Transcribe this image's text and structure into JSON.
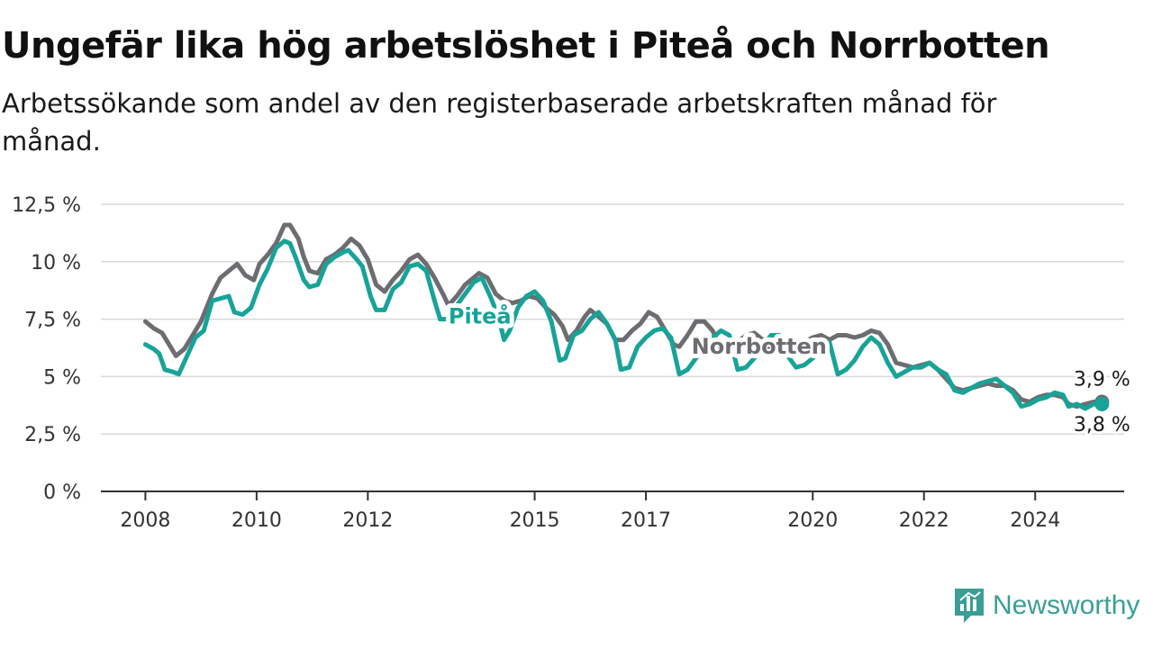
{
  "header": {
    "title": "Ungefär lika hög arbetslöshet i Piteå och Norrbotten",
    "subtitle": "Arbetssökande som andel av den registerbaserade arbetskraften månad för månad."
  },
  "brand": {
    "name": "Newsworthy",
    "icon": "newsworthy-logo-icon",
    "color": "#3a9e95"
  },
  "chart_data": {
    "type": "line",
    "title": "Ungefär lika hög arbetslöshet i Piteå och Norrbotten",
    "subtitle": "Arbetssökande som andel av den registerbaserade arbetskraften månad för månad.",
    "xlabel": "",
    "ylabel": "",
    "x_ticks": [
      {
        "label": "2008",
        "x": 2008.0
      },
      {
        "label": "2010",
        "x": 2010.0
      },
      {
        "label": "2012",
        "x": 2012.0
      },
      {
        "label": "2015",
        "x": 2015.0
      },
      {
        "label": "2017",
        "x": 2017.0
      },
      {
        "label": "2020",
        "x": 2020.0
      },
      {
        "label": "2022",
        "x": 2022.0
      },
      {
        "label": "2024",
        "x": 2024.0
      }
    ],
    "y_ticks": [
      {
        "label": "0 %",
        "y": 0
      },
      {
        "label": "2,5 %",
        "y": 2.5
      },
      {
        "label": "5 %",
        "y": 5
      },
      {
        "label": "7,5 %",
        "y": 7.5
      },
      {
        "label": "10 %",
        "y": 10
      },
      {
        "label": "12,5 %",
        "y": 12.5
      }
    ],
    "xlim": [
      2007.2,
      2025.6
    ],
    "ylim": [
      0,
      12.5
    ],
    "grid": true,
    "series": [
      {
        "name": "Norrbotten",
        "color": "#6d6c70",
        "end_label": "3,9 %",
        "points": [
          [
            2008.0,
            7.4
          ],
          [
            2008.15,
            7.1
          ],
          [
            2008.3,
            6.9
          ],
          [
            2008.45,
            6.3
          ],
          [
            2008.55,
            5.9
          ],
          [
            2008.7,
            6.2
          ],
          [
            2008.85,
            6.8
          ],
          [
            2009.0,
            7.4
          ],
          [
            2009.2,
            8.6
          ],
          [
            2009.35,
            9.3
          ],
          [
            2009.5,
            9.6
          ],
          [
            2009.65,
            9.9
          ],
          [
            2009.8,
            9.4
          ],
          [
            2009.95,
            9.2
          ],
          [
            2010.05,
            9.9
          ],
          [
            2010.2,
            10.3
          ],
          [
            2010.35,
            10.8
          ],
          [
            2010.5,
            11.6
          ],
          [
            2010.6,
            11.6
          ],
          [
            2010.75,
            11.0
          ],
          [
            2010.85,
            10.2
          ],
          [
            2010.95,
            9.6
          ],
          [
            2011.1,
            9.5
          ],
          [
            2011.25,
            10.1
          ],
          [
            2011.4,
            10.3
          ],
          [
            2011.55,
            10.6
          ],
          [
            2011.7,
            11.0
          ],
          [
            2011.85,
            10.7
          ],
          [
            2012.0,
            10.1
          ],
          [
            2012.15,
            9.0
          ],
          [
            2012.3,
            8.7
          ],
          [
            2012.45,
            9.2
          ],
          [
            2012.6,
            9.6
          ],
          [
            2012.75,
            10.1
          ],
          [
            2012.9,
            10.3
          ],
          [
            2013.05,
            9.9
          ],
          [
            2013.2,
            9.3
          ],
          [
            2013.35,
            8.6
          ],
          [
            2013.45,
            8.1
          ],
          [
            2013.6,
            8.5
          ],
          [
            2013.75,
            9.0
          ],
          [
            2013.9,
            9.3
          ],
          [
            2014.0,
            9.5
          ],
          [
            2014.15,
            9.3
          ],
          [
            2014.3,
            8.6
          ],
          [
            2014.45,
            8.3
          ],
          [
            2014.6,
            8.2
          ],
          [
            2014.75,
            8.3
          ],
          [
            2014.9,
            8.5
          ],
          [
            2015.05,
            8.4
          ],
          [
            2015.2,
            8.0
          ],
          [
            2015.35,
            7.7
          ],
          [
            2015.5,
            7.2
          ],
          [
            2015.6,
            6.6
          ],
          [
            2015.75,
            7.0
          ],
          [
            2015.9,
            7.6
          ],
          [
            2016.0,
            7.9
          ],
          [
            2016.15,
            7.6
          ],
          [
            2016.3,
            7.3
          ],
          [
            2016.45,
            6.6
          ],
          [
            2016.6,
            6.6
          ],
          [
            2016.75,
            7.0
          ],
          [
            2016.9,
            7.3
          ],
          [
            2017.05,
            7.8
          ],
          [
            2017.2,
            7.6
          ],
          [
            2017.35,
            7.0
          ],
          [
            2017.5,
            6.4
          ],
          [
            2017.6,
            6.3
          ],
          [
            2017.75,
            6.8
          ],
          [
            2017.9,
            7.4
          ],
          [
            2018.05,
            7.4
          ],
          [
            2018.2,
            7.0
          ],
          [
            2018.35,
            6.2
          ],
          [
            2018.5,
            6.2
          ],
          [
            2018.65,
            6.5
          ],
          [
            2018.8,
            6.8
          ],
          [
            2018.95,
            6.9
          ],
          [
            2019.1,
            6.6
          ],
          [
            2019.25,
            6.2
          ],
          [
            2019.4,
            6.0
          ],
          [
            2019.55,
            6.1
          ],
          [
            2019.7,
            6.3
          ],
          [
            2019.85,
            6.5
          ],
          [
            2020.0,
            6.7
          ],
          [
            2020.15,
            6.8
          ],
          [
            2020.3,
            6.6
          ],
          [
            2020.45,
            6.8
          ],
          [
            2020.6,
            6.8
          ],
          [
            2020.75,
            6.7
          ],
          [
            2020.9,
            6.8
          ],
          [
            2021.05,
            7.0
          ],
          [
            2021.2,
            6.9
          ],
          [
            2021.35,
            6.4
          ],
          [
            2021.5,
            5.6
          ],
          [
            2021.65,
            5.5
          ],
          [
            2021.8,
            5.4
          ],
          [
            2021.95,
            5.5
          ],
          [
            2022.1,
            5.6
          ],
          [
            2022.25,
            5.3
          ],
          [
            2022.4,
            4.9
          ],
          [
            2022.55,
            4.5
          ],
          [
            2022.7,
            4.4
          ],
          [
            2022.85,
            4.5
          ],
          [
            2023.0,
            4.6
          ],
          [
            2023.15,
            4.7
          ],
          [
            2023.3,
            4.6
          ],
          [
            2023.45,
            4.6
          ],
          [
            2023.6,
            4.4
          ],
          [
            2023.75,
            4.0
          ],
          [
            2023.9,
            3.9
          ],
          [
            2024.05,
            4.1
          ],
          [
            2024.2,
            4.2
          ],
          [
            2024.35,
            4.2
          ],
          [
            2024.5,
            4.1
          ],
          [
            2024.6,
            3.8
          ],
          [
            2024.75,
            3.7
          ],
          [
            2024.9,
            3.8
          ],
          [
            2025.05,
            3.9
          ],
          [
            2025.2,
            3.9
          ]
        ]
      },
      {
        "name": "Piteå",
        "color": "#17a398",
        "end_label": "3,8 %",
        "points": [
          [
            2008.0,
            6.4
          ],
          [
            2008.15,
            6.2
          ],
          [
            2008.25,
            6.0
          ],
          [
            2008.35,
            5.3
          ],
          [
            2008.5,
            5.2
          ],
          [
            2008.6,
            5.1
          ],
          [
            2008.75,
            5.9
          ],
          [
            2008.9,
            6.7
          ],
          [
            2009.05,
            7.0
          ],
          [
            2009.2,
            8.3
          ],
          [
            2009.35,
            8.4
          ],
          [
            2009.5,
            8.5
          ],
          [
            2009.6,
            7.8
          ],
          [
            2009.75,
            7.7
          ],
          [
            2009.9,
            8.0
          ],
          [
            2010.05,
            9.0
          ],
          [
            2010.2,
            9.7
          ],
          [
            2010.35,
            10.6
          ],
          [
            2010.5,
            10.9
          ],
          [
            2010.6,
            10.8
          ],
          [
            2010.7,
            10.2
          ],
          [
            2010.85,
            9.2
          ],
          [
            2010.95,
            8.9
          ],
          [
            2011.1,
            9.0
          ],
          [
            2011.25,
            9.9
          ],
          [
            2011.4,
            10.2
          ],
          [
            2011.55,
            10.4
          ],
          [
            2011.65,
            10.5
          ],
          [
            2011.8,
            10.1
          ],
          [
            2011.9,
            9.8
          ],
          [
            2012.05,
            8.5
          ],
          [
            2012.15,
            7.9
          ],
          [
            2012.3,
            7.9
          ],
          [
            2012.45,
            8.8
          ],
          [
            2012.6,
            9.1
          ],
          [
            2012.75,
            9.8
          ],
          [
            2012.9,
            9.9
          ],
          [
            2013.05,
            9.6
          ],
          [
            2013.2,
            8.3
          ],
          [
            2013.3,
            7.5
          ],
          [
            2013.45,
            7.5
          ],
          [
            2013.6,
            8.1
          ],
          [
            2013.75,
            8.6
          ],
          [
            2013.9,
            9.1
          ],
          [
            2014.05,
            9.3
          ],
          [
            2014.2,
            8.5
          ],
          [
            2014.35,
            7.6
          ],
          [
            2014.45,
            6.6
          ],
          [
            2014.55,
            7.0
          ],
          [
            2014.7,
            8.0
          ],
          [
            2014.85,
            8.5
          ],
          [
            2015.0,
            8.7
          ],
          [
            2015.15,
            8.3
          ],
          [
            2015.3,
            7.4
          ],
          [
            2015.45,
            5.7
          ],
          [
            2015.55,
            5.8
          ],
          [
            2015.7,
            6.8
          ],
          [
            2015.85,
            7.0
          ],
          [
            2016.0,
            7.5
          ],
          [
            2016.15,
            7.8
          ],
          [
            2016.3,
            7.3
          ],
          [
            2016.45,
            6.6
          ],
          [
            2016.55,
            5.3
          ],
          [
            2016.7,
            5.4
          ],
          [
            2016.85,
            6.3
          ],
          [
            2017.0,
            6.7
          ],
          [
            2017.15,
            7.0
          ],
          [
            2017.3,
            7.1
          ],
          [
            2017.45,
            6.7
          ],
          [
            2017.6,
            5.1
          ],
          [
            2017.75,
            5.3
          ],
          [
            2017.9,
            5.8
          ],
          [
            2018.05,
            6.2
          ],
          [
            2018.2,
            6.7
          ],
          [
            2018.35,
            7.0
          ],
          [
            2018.5,
            6.8
          ],
          [
            2018.65,
            5.3
          ],
          [
            2018.8,
            5.4
          ],
          [
            2018.95,
            5.8
          ],
          [
            2019.1,
            6.3
          ],
          [
            2019.25,
            6.8
          ],
          [
            2019.4,
            6.8
          ],
          [
            2019.55,
            5.9
          ],
          [
            2019.7,
            5.4
          ],
          [
            2019.85,
            5.5
          ],
          [
            2020.0,
            5.8
          ],
          [
            2020.15,
            6.5
          ],
          [
            2020.3,
            6.5
          ],
          [
            2020.45,
            5.1
          ],
          [
            2020.6,
            5.3
          ],
          [
            2020.75,
            5.7
          ],
          [
            2020.9,
            6.3
          ],
          [
            2021.05,
            6.7
          ],
          [
            2021.2,
            6.4
          ],
          [
            2021.35,
            5.6
          ],
          [
            2021.5,
            5.0
          ],
          [
            2021.65,
            5.2
          ],
          [
            2021.8,
            5.4
          ],
          [
            2021.95,
            5.4
          ],
          [
            2022.1,
            5.6
          ],
          [
            2022.25,
            5.3
          ],
          [
            2022.4,
            5.1
          ],
          [
            2022.55,
            4.4
          ],
          [
            2022.7,
            4.3
          ],
          [
            2022.85,
            4.5
          ],
          [
            2023.0,
            4.7
          ],
          [
            2023.15,
            4.8
          ],
          [
            2023.3,
            4.9
          ],
          [
            2023.45,
            4.6
          ],
          [
            2023.6,
            4.3
          ],
          [
            2023.75,
            3.7
          ],
          [
            2023.9,
            3.8
          ],
          [
            2024.05,
            4.0
          ],
          [
            2024.2,
            4.1
          ],
          [
            2024.35,
            4.3
          ],
          [
            2024.5,
            4.2
          ],
          [
            2024.6,
            3.7
          ],
          [
            2024.75,
            3.8
          ],
          [
            2024.9,
            3.6
          ],
          [
            2025.05,
            3.8
          ],
          [
            2025.2,
            3.8
          ]
        ]
      }
    ]
  }
}
